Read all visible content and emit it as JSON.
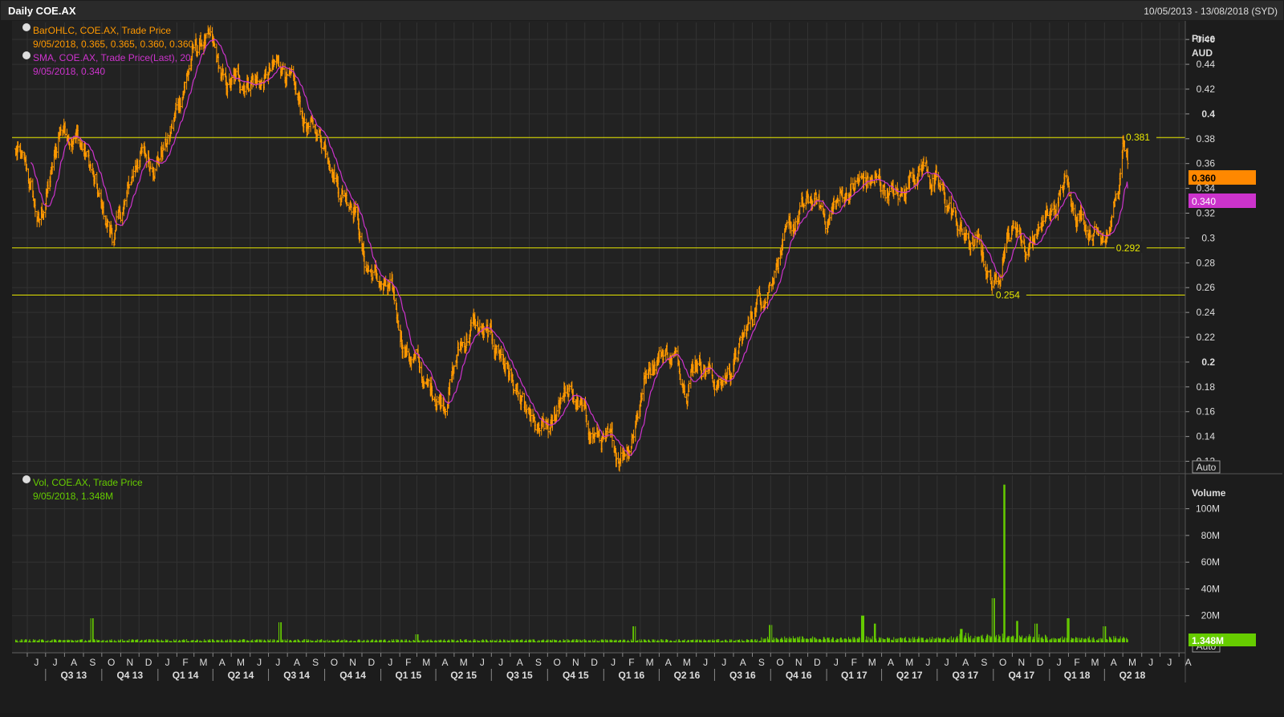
{
  "header": {
    "title": "Daily COE.AX",
    "date_range": "10/05/2013 - 13/08/2018 (SYD)"
  },
  "colors": {
    "background": "#1c1c1c",
    "panel": "#222222",
    "grid": "#333333",
    "price_bars": "#ff9900",
    "sma": "#cc33cc",
    "volume": "#66cc00",
    "level_lines": "#e6e600",
    "text": "#dddddd"
  },
  "legend": {
    "bar_label": "BarOHLC, COE.AX, Trade Price",
    "bar_values": "9/05/2018, 0.365, 0.365, 0.360, 0.360",
    "sma_label": "SMA, COE.AX, Trade Price(Last),  20",
    "sma_values": "9/05/2018, 0.340",
    "vol_label": "Vol, COE.AX, Trade Price",
    "vol_values": "9/05/2018, 1.348M"
  },
  "price_axis": {
    "title": "Price",
    "unit": "AUD",
    "ticks": [
      "0.46",
      "0.44",
      "0.42",
      "0.4",
      "0.38",
      "0.36",
      "0.34",
      "0.32",
      "0.3",
      "0.28",
      "0.26",
      "0.24",
      "0.22",
      "0.2",
      "0.18",
      "0.16",
      "0.14",
      "0.12"
    ],
    "current_badge": "0.360",
    "sma_badge": "0.340",
    "auto_label": "Auto"
  },
  "volume_axis": {
    "title": "Volume",
    "ticks": [
      "100M",
      "80M",
      "60M",
      "40M",
      "20M"
    ],
    "current_badge": "1.348M",
    "auto_label": "Auto"
  },
  "levels": [
    {
      "value": 0.381,
      "label": "0.381"
    },
    {
      "value": 0.292,
      "label": "0.292"
    },
    {
      "value": 0.254,
      "label": "0.254"
    }
  ],
  "month_labels": [
    "J",
    "J",
    "A",
    "S",
    "O",
    "N",
    "D",
    "J",
    "F",
    "M",
    "A",
    "M",
    "J",
    "J",
    "A",
    "S",
    "O",
    "N",
    "D",
    "J",
    "F",
    "M",
    "A",
    "M",
    "J",
    "J",
    "A",
    "S",
    "O",
    "N",
    "D",
    "J",
    "F",
    "M",
    "A",
    "M",
    "J",
    "J",
    "A",
    "S",
    "O",
    "N",
    "D",
    "J",
    "F",
    "M",
    "A",
    "M",
    "J",
    "J",
    "A",
    "S",
    "O",
    "N",
    "D",
    "J",
    "F",
    "M",
    "A",
    "M",
    "J",
    "J",
    "A"
  ],
  "quarter_labels": [
    "Q3 13",
    "Q4 13",
    "Q1 14",
    "Q2 14",
    "Q3 14",
    "Q4 14",
    "Q1 15",
    "Q2 15",
    "Q3 15",
    "Q4 15",
    "Q1 16",
    "Q2 16",
    "Q3 16",
    "Q4 16",
    "Q1 17",
    "Q2 17",
    "Q3 17",
    "Q4 17",
    "Q1 18",
    "Q2 18"
  ],
  "chart_data": {
    "type": "line",
    "x_start": "2013-05-10",
    "x_end": "2018-08-13",
    "ylim": [
      0.11,
      0.475
    ],
    "volume_ylim": [
      0,
      125
    ],
    "price_keypoints": [
      [
        "2013-05-13",
        0.37
      ],
      [
        "2013-06-01",
        0.35
      ],
      [
        "2013-06-20",
        0.31
      ],
      [
        "2013-07-15",
        0.36
      ],
      [
        "2013-07-25",
        0.39
      ],
      [
        "2013-08-20",
        0.385
      ],
      [
        "2013-09-10",
        0.36
      ],
      [
        "2013-10-01",
        0.32
      ],
      [
        "2013-10-20",
        0.3
      ],
      [
        "2013-11-10",
        0.33
      ],
      [
        "2013-12-01",
        0.37
      ],
      [
        "2013-12-20",
        0.36
      ],
      [
        "2014-01-20",
        0.38
      ],
      [
        "2014-02-10",
        0.42
      ],
      [
        "2014-03-01",
        0.45
      ],
      [
        "2014-03-20",
        0.46
      ],
      [
        "2014-04-01",
        0.45
      ],
      [
        "2014-04-20",
        0.42
      ],
      [
        "2014-05-10",
        0.425
      ],
      [
        "2014-06-01",
        0.43
      ],
      [
        "2014-06-20",
        0.425
      ],
      [
        "2014-07-10",
        0.435
      ],
      [
        "2014-07-25",
        0.44
      ],
      [
        "2014-08-15",
        0.41
      ],
      [
        "2014-09-01",
        0.39
      ],
      [
        "2014-09-20",
        0.385
      ],
      [
        "2014-10-10",
        0.37
      ],
      [
        "2014-10-25",
        0.34
      ],
      [
        "2014-11-20",
        0.33
      ],
      [
        "2014-12-05",
        0.28
      ],
      [
        "2014-12-20",
        0.27
      ],
      [
        "2015-01-20",
        0.25
      ],
      [
        "2015-02-10",
        0.21
      ],
      [
        "2015-03-01",
        0.2
      ],
      [
        "2015-03-15",
        0.18
      ],
      [
        "2015-04-15",
        0.17
      ],
      [
        "2015-05-10",
        0.21
      ],
      [
        "2015-06-01",
        0.23
      ],
      [
        "2015-06-20",
        0.22
      ],
      [
        "2015-07-15",
        0.21
      ],
      [
        "2015-08-01",
        0.19
      ],
      [
        "2015-08-20",
        0.16
      ],
      [
        "2015-09-15",
        0.14
      ],
      [
        "2015-10-10",
        0.145
      ],
      [
        "2015-10-25",
        0.18
      ],
      [
        "2015-11-20",
        0.165
      ],
      [
        "2015-12-10",
        0.145
      ],
      [
        "2016-01-01",
        0.135
      ],
      [
        "2016-01-25",
        0.125
      ],
      [
        "2016-02-15",
        0.14
      ],
      [
        "2016-03-01",
        0.17
      ],
      [
        "2016-03-15",
        0.2
      ],
      [
        "2016-04-10",
        0.21
      ],
      [
        "2016-04-25",
        0.205
      ],
      [
        "2016-05-15",
        0.185
      ],
      [
        "2016-06-01",
        0.205
      ],
      [
        "2016-06-20",
        0.195
      ],
      [
        "2016-07-10",
        0.18
      ],
      [
        "2016-08-01",
        0.2
      ],
      [
        "2016-08-20",
        0.22
      ],
      [
        "2016-09-10",
        0.25
      ],
      [
        "2016-09-25",
        0.26
      ],
      [
        "2016-10-15",
        0.29
      ],
      [
        "2016-11-01",
        0.3
      ],
      [
        "2016-11-20",
        0.32
      ],
      [
        "2016-12-10",
        0.33
      ],
      [
        "2017-01-01",
        0.315
      ],
      [
        "2017-01-20",
        0.33
      ],
      [
        "2017-02-10",
        0.34
      ],
      [
        "2017-03-01",
        0.345
      ],
      [
        "2017-03-20",
        0.345
      ],
      [
        "2017-04-10",
        0.34
      ],
      [
        "2017-05-01",
        0.33
      ],
      [
        "2017-05-20",
        0.355
      ],
      [
        "2017-06-10",
        0.36
      ],
      [
        "2017-07-01",
        0.34
      ],
      [
        "2017-07-25",
        0.32
      ],
      [
        "2017-08-15",
        0.3
      ],
      [
        "2017-09-10",
        0.29
      ],
      [
        "2017-09-25",
        0.27
      ],
      [
        "2017-10-05",
        0.262
      ],
      [
        "2017-10-20",
        0.3
      ],
      [
        "2017-11-10",
        0.31
      ],
      [
        "2017-11-25",
        0.29
      ],
      [
        "2017-12-15",
        0.31
      ],
      [
        "2018-01-10",
        0.32
      ],
      [
        "2018-01-25",
        0.345
      ],
      [
        "2018-02-15",
        0.325
      ],
      [
        "2018-03-05",
        0.31
      ],
      [
        "2018-03-25",
        0.305
      ],
      [
        "2018-04-10",
        0.315
      ],
      [
        "2018-04-25",
        0.34
      ],
      [
        "2018-05-03",
        0.375
      ],
      [
        "2018-05-09",
        0.36
      ]
    ],
    "volume_spikes": [
      [
        "2013-09-15",
        18
      ],
      [
        "2014-07-20",
        15
      ],
      [
        "2015-03-01",
        6
      ],
      [
        "2016-02-20",
        12
      ],
      [
        "2016-10-01",
        13
      ],
      [
        "2017-03-01",
        20
      ],
      [
        "2017-03-20",
        14
      ],
      [
        "2017-08-10",
        10
      ],
      [
        "2017-10-01",
        33
      ],
      [
        "2017-10-20",
        118
      ],
      [
        "2017-11-10",
        16
      ],
      [
        "2017-12-10",
        14
      ],
      [
        "2018-02-01",
        18
      ],
      [
        "2018-04-01",
        12
      ]
    ],
    "last_close": 0.36,
    "last_sma": 0.34,
    "last_volume": "1.348M"
  }
}
